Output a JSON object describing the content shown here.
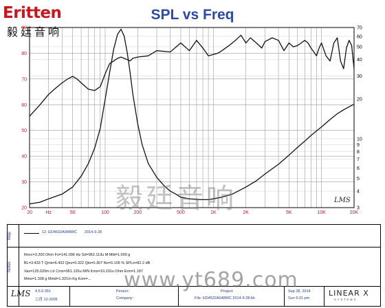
{
  "logo": {
    "word": "ritten",
    "initial": "E",
    "cn": "毅廷音响"
  },
  "chart_data": {
    "type": "line",
    "title": "SPL vs Freq",
    "xscale": "log",
    "xlim": [
      20,
      20000
    ],
    "x_ticks": [
      "20",
      "Hz",
      "50",
      "100",
      "200",
      "500",
      "1K",
      "2K",
      "5K",
      "10K",
      "20K"
    ],
    "x_tick_values": [
      20,
      30,
      50,
      100,
      200,
      500,
      1000,
      2000,
      5000,
      10000,
      20000
    ],
    "ylim_left": [
      20,
      90
    ],
    "y_ticks_left": [
      "20",
      "30",
      "40",
      "50",
      "60",
      "70",
      "80",
      "90"
    ],
    "ylim_right": [
      3,
      70
    ],
    "yscale_right": "log",
    "y_ticks_right": [
      "70",
      "60",
      "50",
      "40",
      "30",
      "20",
      "10",
      "9",
      "8",
      "7",
      "6",
      "5",
      "4",
      "3"
    ],
    "y_tick_right_values": [
      70,
      60,
      50,
      40,
      30,
      20,
      10,
      9,
      8,
      7,
      6,
      5,
      4,
      3
    ],
    "series": [
      {
        "axis": "left",
        "x": [
          20,
          25,
          30,
          35,
          40,
          45,
          50,
          55,
          60,
          70,
          80,
          90,
          100,
          110,
          120,
          130,
          140,
          150,
          160,
          170,
          180,
          200,
          250,
          300,
          400,
          500,
          600,
          700,
          800,
          900,
          1000,
          1100,
          1200,
          1400,
          1600,
          1800,
          2000,
          2200,
          2500,
          2800,
          3000,
          3500,
          4000,
          4500,
          5000,
          5500,
          6000,
          6500,
          7000,
          7500,
          8000,
          8500,
          9000,
          9500,
          10000,
          11000,
          12000,
          13000,
          14000,
          15000,
          16000,
          17000,
          18000,
          19000,
          20000
        ],
        "y": [
          55.5,
          60,
          64,
          66.5,
          68.5,
          70,
          71,
          70,
          68.5,
          66,
          65.5,
          67,
          72,
          76,
          77,
          78,
          78.5,
          78,
          77.5,
          77,
          78,
          78.5,
          79,
          81,
          80.5,
          84,
          81,
          85,
          82,
          79,
          79.5,
          80,
          81,
          83,
          85,
          87,
          84,
          86,
          84,
          82,
          84.5,
          86,
          85,
          81,
          84,
          82.5,
          83,
          84,
          85,
          84,
          82,
          80.5,
          79,
          82,
          84,
          79,
          77,
          84,
          86,
          77,
          74,
          82,
          85,
          83,
          74
        ]
      },
      {
        "axis": "right",
        "x": [
          20,
          25,
          30,
          40,
          50,
          60,
          70,
          80,
          90,
          100,
          110,
          120,
          130,
          140,
          150,
          160,
          170,
          180,
          200,
          220,
          250,
          300,
          350,
          400,
          450,
          500,
          600,
          700,
          800,
          900,
          1000,
          1200,
          1500,
          2000,
          2500,
          3000,
          4000,
          5000,
          6000,
          7000,
          8000,
          10000,
          12000,
          14000,
          16000,
          18000,
          20000
        ],
        "y": [
          3.2,
          3.3,
          3.5,
          3.8,
          4.3,
          5.2,
          6.5,
          8.5,
          12,
          20,
          32,
          48,
          62,
          68,
          60,
          45,
          32,
          22,
          13,
          9,
          6.5,
          5.1,
          4.4,
          4.0,
          3.8,
          3.6,
          3.5,
          3.45,
          3.45,
          3.45,
          3.5,
          3.6,
          3.8,
          4.3,
          4.8,
          5.4,
          6.4,
          7.5,
          8.6,
          9.6,
          10.6,
          12.3,
          14.0,
          15.5,
          16.6,
          17.5,
          18.3
        ]
      }
    ]
  },
  "chart_mark": "LMS",
  "legend": {
    "section": "Map",
    "entry": "12: ED4532A048WC",
    "date": "2014-9-28"
  },
  "notes": {
    "section": "Notes",
    "lines": [
      "Revc=3.200 Ohm  Fo=141.096 Hz  Sd=962.113u M Mld=1.000 g",
      "BL=3.433 T  Qms=6.432  Qes=0.322  Qts=0.307  No=0.105 %  SPLo=82.2 dB",
      "Vas=125.020m Ltr  Cms=951.126u M/N  Kms=10.291u Ohm  Erm=1.187",
      "Mms=1.338 g  Mmd=1.321m Kg  Kxm=..."
    ]
  },
  "footer": {
    "version": "4.5.0.351",
    "version_date": "二月 12-2005",
    "person_label": "Person:",
    "company_label": "Company:",
    "project_label": "Project:",
    "file_label": "File:",
    "file_value": "ED4532A048WC 2014-9-28.lib",
    "date_value": "Sep 28, 2014",
    "time_value": "Sun 5:31 pm",
    "lms_logo": "LMS",
    "brand": "LINEAR X",
    "brand_sub": "SYSTEMS"
  },
  "watermark": {
    "cn": "毅廷音响",
    "url": "www.yt689.com"
  },
  "colors": {
    "title": "#2c49a7",
    "tick_left": "#b8202a",
    "curve": "#111111",
    "grid": "#8a8a8a",
    "label_blue": "#1f3a93"
  }
}
